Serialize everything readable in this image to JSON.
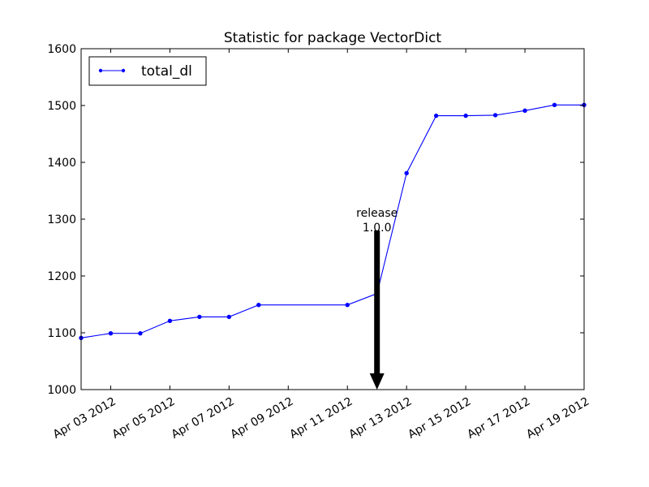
{
  "chart_data": {
    "type": "line",
    "title": "Statistic for package VectorDict",
    "xlabel": "",
    "ylabel": "",
    "x_start": "2012-04-02",
    "x_end": "2012-04-19",
    "ylim": [
      1000,
      1600
    ],
    "y_ticks": [
      1000,
      1100,
      1200,
      1300,
      1400,
      1500,
      1600
    ],
    "x_ticks": [
      {
        "date": "2012-04-03",
        "label": "Apr 03 2012"
      },
      {
        "date": "2012-04-05",
        "label": "Apr 05 2012"
      },
      {
        "date": "2012-04-07",
        "label": "Apr 07 2012"
      },
      {
        "date": "2012-04-09",
        "label": "Apr 09 2012"
      },
      {
        "date": "2012-04-11",
        "label": "Apr 11 2012"
      },
      {
        "date": "2012-04-13",
        "label": "Apr 13 2012"
      },
      {
        "date": "2012-04-15",
        "label": "Apr 15 2012"
      },
      {
        "date": "2012-04-17",
        "label": "Apr 17 2012"
      },
      {
        "date": "2012-04-19",
        "label": "Apr 19 2012"
      }
    ],
    "legend_position": "top-left",
    "series": [
      {
        "name": "total_dl",
        "color": "#0000ff",
        "points": [
          {
            "x": "2012-04-02",
            "y": 1091
          },
          {
            "x": "2012-04-03",
            "y": 1099
          },
          {
            "x": "2012-04-04",
            "y": 1099
          },
          {
            "x": "2012-04-05",
            "y": 1121
          },
          {
            "x": "2012-04-06",
            "y": 1128
          },
          {
            "x": "2012-04-07",
            "y": 1128
          },
          {
            "x": "2012-04-08",
            "y": 1149
          },
          {
            "x": "2012-04-11",
            "y": 1149
          },
          {
            "x": "2012-04-12",
            "y": 1169
          },
          {
            "x": "2012-04-13",
            "y": 1381
          },
          {
            "x": "2012-04-14",
            "y": 1482
          },
          {
            "x": "2012-04-15",
            "y": 1482
          },
          {
            "x": "2012-04-16",
            "y": 1483
          },
          {
            "x": "2012-04-17",
            "y": 1491
          },
          {
            "x": "2012-04-18",
            "y": 1501
          },
          {
            "x": "2012-04-19",
            "y": 1501
          }
        ]
      }
    ],
    "annotations": [
      {
        "text_line1": "release",
        "text_line2": "1.0.0",
        "x": "2012-04-12",
        "y_from": 1280,
        "y_to": 1000
      }
    ]
  }
}
